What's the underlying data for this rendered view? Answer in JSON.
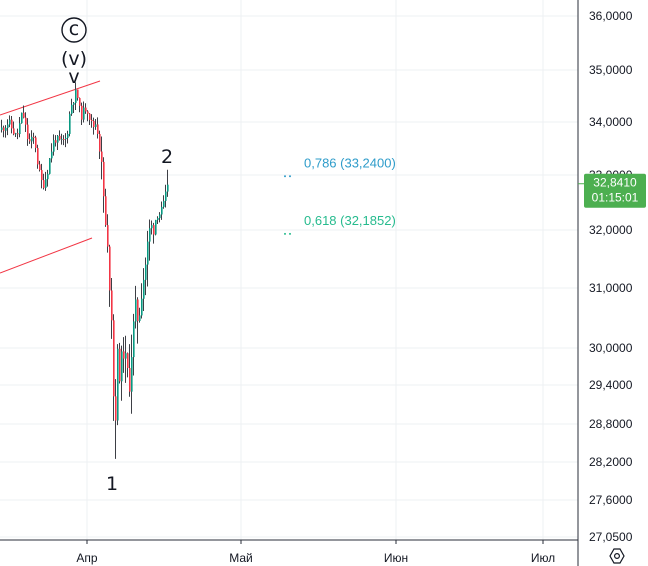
{
  "chart_data": {
    "type": "candlestick",
    "y_axis": {
      "ticks": [
        "36,0000",
        "35,0000",
        "34,0000",
        "33,0000",
        "32,0000",
        "31,0000",
        "30,0000",
        "29,4000",
        "28,8000",
        "28,2000",
        "27,6000",
        "27,0500"
      ]
    },
    "x_axis": {
      "ticks": [
        "Апр",
        "Май",
        "Июн",
        "Июл"
      ]
    },
    "grid": true,
    "last_price": {
      "value": "32,8410",
      "countdown": "01:15:01",
      "color": "#4CAF50"
    },
    "wave_labels": {
      "degree_c": "c",
      "minor_v": "(v)",
      "tick_mark": "v",
      "wave_1": "1",
      "wave_2": "2"
    },
    "fib_levels": [
      {
        "label": "0,786 (33,2400)",
        "value": 33.24,
        "color": "#2E9CCA"
      },
      {
        "label": "0,618 (32,1852)",
        "value": 32.1852,
        "color": "#26BB8E"
      }
    ],
    "channel_color": "#F23645",
    "up_color": "#089981",
    "down_color": "#F23645",
    "wick_color": "#3D3F45"
  }
}
